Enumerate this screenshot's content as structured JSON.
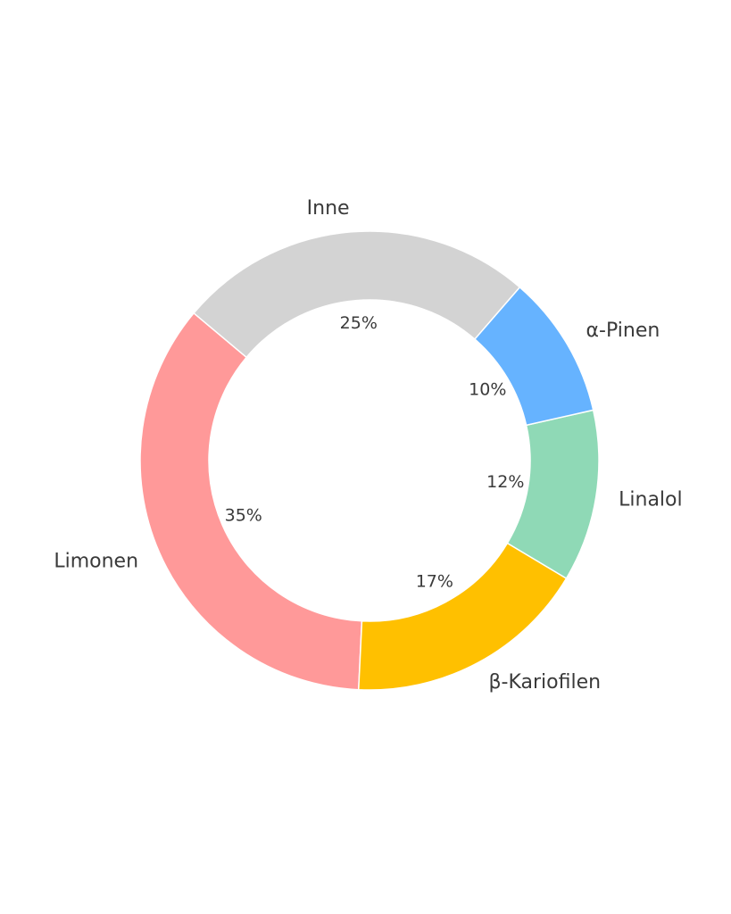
{
  "chart_data": {
    "type": "donut",
    "categories": [
      "Limonen",
      "β-Kariofilen",
      "Linalol",
      "α-Pinen",
      "Inne"
    ],
    "values": [
      35,
      17,
      12,
      10,
      25
    ],
    "value_labels": [
      "35%",
      "17%",
      "12%",
      "10%",
      "25%"
    ],
    "colors": [
      "#ff9999",
      "#ffc000",
      "#8fd9b6",
      "#66b3ff",
      "#d3d3d3"
    ]
  }
}
